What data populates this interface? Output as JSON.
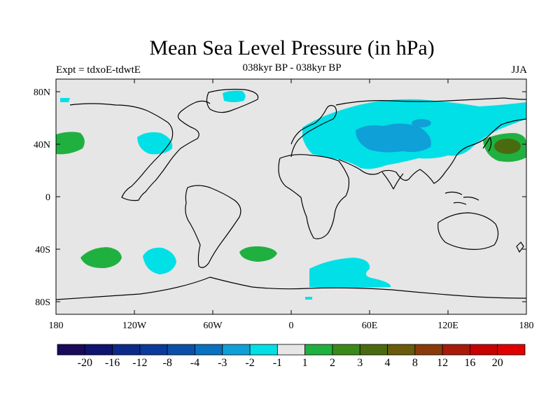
{
  "title": "Mean Sea Level Pressure (in hPa)",
  "subtitle_left": "Expt = tdxoE-tdwtE",
  "subtitle_center": "038kyr BP - 038kyr BP",
  "subtitle_right": "JJA",
  "lat_ticks": [
    "80N",
    "40N",
    "0",
    "40S",
    "80S"
  ],
  "lon_ticks": [
    "180",
    "120W",
    "60W",
    "0",
    "60E",
    "120E",
    "180"
  ],
  "colorbar": {
    "labels": [
      "-20",
      "-16",
      "-12",
      "-8",
      "-4",
      "-3",
      "-2",
      "-1",
      "1",
      "2",
      "3",
      "4",
      "8",
      "12",
      "16",
      "20"
    ],
    "colors": [
      "#1a0a5a",
      "#0e1470",
      "#0c2a8a",
      "#0a3a9a",
      "#0a50aa",
      "#0a70c0",
      "#10a0d8",
      "#00e0e6",
      "#e6e6e6",
      "#20b040",
      "#3a8a1a",
      "#4a6a10",
      "#6a5a0a",
      "#8a3a0a",
      "#a81a0a",
      "#c80000",
      "#e00000"
    ]
  },
  "colors": {
    "background": "#e6e6e6",
    "cyan_negative": "#00e0e6",
    "blue_negative": "#10a0d8",
    "green_positive": "#20b040",
    "olive_positive": "#4a6a10"
  }
}
